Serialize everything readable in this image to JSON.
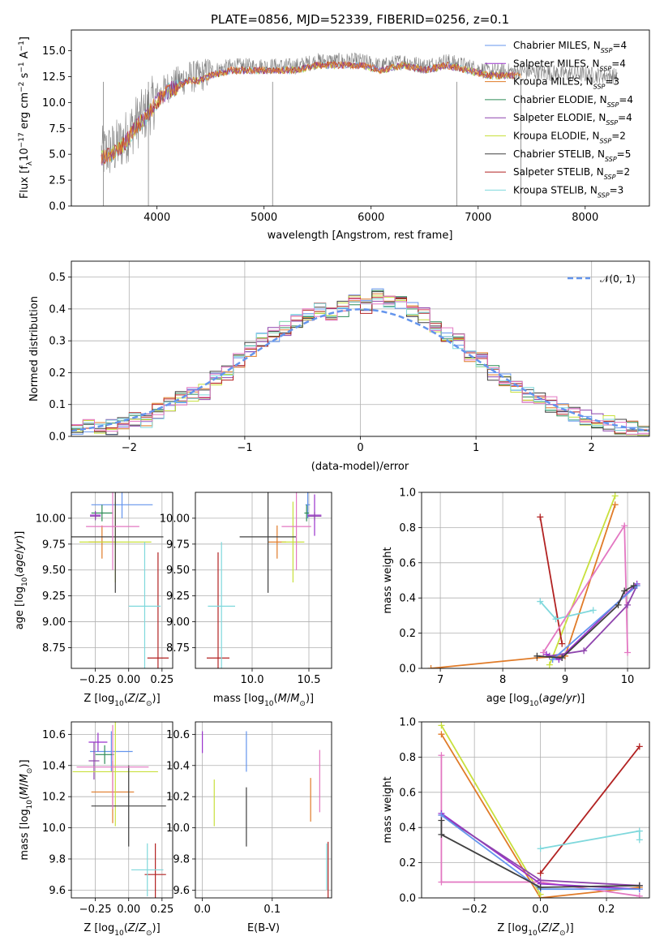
{
  "colors": {
    "chabrier_miles": "#6495ed",
    "salpeter_miles": "#9932cc",
    "kroupa_miles": "#e07b28",
    "chabrier_elodie": "#2e8b57",
    "salpeter_elodie": "#8e44ad",
    "kroupa_elodie": "#c8e03c",
    "chabrier_stelib": "#404040",
    "salpeter_stelib": "#b22222",
    "kroupa_stelib": "#7fd8dc",
    "elodie_pink": "#e377c2",
    "gaussian": "#6495ed"
  },
  "chart_data": [
    {
      "type": "line",
      "title": "PLATE=0856, MJD=52339, FIBERID=0256, z=0.1",
      "xlabel": "wavelength [Angstrom, rest frame]",
      "ylabel": "Flux [fλ10⁻¹⁷ erg cm⁻² s⁻¹ A⁻¹]",
      "xlim": [
        3200,
        8600
      ],
      "ylim": [
        0,
        17
      ],
      "xticks": [
        4000,
        5000,
        6000,
        7000,
        8000
      ],
      "yticks": [
        0.0,
        2.5,
        5.0,
        7.5,
        10.0,
        12.5,
        15.0
      ],
      "legend_position": "right",
      "legend": [
        "Chabrier MILES, N_SSP=4",
        "Salpeter MILES, N_SSP=4",
        "Kroupa MILES, N_SSP=3",
        "Chabrier ELODIE, N_SSP=4",
        "Salpeter ELODIE, N_SSP=4",
        "Kroupa ELODIE, N_SSP=2",
        "Chabrier STELIB, N_SSP=5",
        "Salpeter STELIB, N_SSP=2",
        "Kroupa STELIB, N_SSP=3"
      ],
      "spectrum_envelope": {
        "x": [
          3480,
          3600,
          3700,
          3800,
          3900,
          4000,
          4100,
          4200,
          4300,
          4400,
          4500,
          4700,
          4900,
          5100,
          5300,
          5500,
          5700,
          5900,
          6100,
          6300,
          6500,
          6700,
          6900,
          7100,
          7300,
          7400
        ],
        "y": [
          5.0,
          5.5,
          6.5,
          8.0,
          9.0,
          10.5,
          11.5,
          12.0,
          12.5,
          12.5,
          13.0,
          13.5,
          13.5,
          13.5,
          13.5,
          14.0,
          14.0,
          14.0,
          13.5,
          14.0,
          13.5,
          14.0,
          13.5,
          13.0,
          13.0,
          13.0
        ]
      }
    },
    {
      "type": "bar",
      "xlabel": "(data-model)/error",
      "ylabel": "Normed distribution",
      "xlim": [
        -2.5,
        2.5
      ],
      "ylim": [
        0,
        0.55
      ],
      "xticks": [
        -2,
        -1,
        0,
        1,
        2
      ],
      "yticks": [
        0.0,
        0.1,
        0.2,
        0.3,
        0.4,
        0.5
      ],
      "legend": [
        "𝒩(0, 1)"
      ],
      "legend_position": "top-right",
      "bin_width": 0.1,
      "bins_left": -2.5,
      "histogram": [
        0.02,
        0.03,
        0.03,
        0.03,
        0.04,
        0.05,
        0.05,
        0.08,
        0.1,
        0.12,
        0.13,
        0.14,
        0.18,
        0.2,
        0.24,
        0.27,
        0.3,
        0.32,
        0.34,
        0.36,
        0.38,
        0.4,
        0.38,
        0.4,
        0.42,
        0.41,
        0.44,
        0.43,
        0.42,
        0.4,
        0.38,
        0.35,
        0.32,
        0.3,
        0.26,
        0.24,
        0.2,
        0.18,
        0.15,
        0.13,
        0.12,
        0.1,
        0.08,
        0.07,
        0.06,
        0.05,
        0.04,
        0.03,
        0.03,
        0.02
      ]
    },
    {
      "type": "scatter",
      "xlabel": "Z [log10(Z/Z⊙)]",
      "ylabel": "age [log10(age/yr)]",
      "xlim": [
        -0.43,
        0.33
      ],
      "ylim": [
        8.55,
        10.25
      ],
      "xticks": [
        -0.25,
        0.0,
        0.25
      ],
      "yticks": [
        8.75,
        9.0,
        9.25,
        9.5,
        9.75,
        10.0
      ],
      "points": [
        {
          "series": "chabrier_miles",
          "x": -0.05,
          "y": 10.13,
          "xerr": 0.23,
          "yerr": 0.13
        },
        {
          "series": "salpeter_miles",
          "x": -0.25,
          "y": 10.03,
          "xerr": 0.04,
          "yerr": 0.04
        },
        {
          "series": "kroupa_miles",
          "x": -0.2,
          "y": 9.77,
          "xerr": 0.1,
          "yerr": 0.16
        },
        {
          "series": "chabrier_elodie",
          "x": -0.2,
          "y": 10.05,
          "xerr": 0.08,
          "yerr": 0.08
        },
        {
          "series": "salpeter_elodie",
          "x": -0.25,
          "y": 10.02,
          "xerr": 0.04,
          "yerr": 0.04
        },
        {
          "series": "kroupa_elodie",
          "x": -0.1,
          "y": 9.77,
          "xerr": 0.27,
          "yerr": 0.39
        },
        {
          "series": "chabrier_stelib",
          "x": -0.1,
          "y": 9.82,
          "xerr": 0.36,
          "yerr": 0.54
        },
        {
          "series": "salpeter_stelib",
          "x": 0.22,
          "y": 8.65,
          "xerr": 0.08,
          "yerr": 1.02
        },
        {
          "series": "kroupa_stelib",
          "x": 0.12,
          "y": 9.15,
          "xerr": 0.12,
          "yerr": 0.62
        },
        {
          "series": "elodie_pink",
          "x": -0.12,
          "y": 9.92,
          "xerr": 0.2,
          "yerr": 0.42
        }
      ]
    },
    {
      "type": "scatter",
      "xlabel": "mass [log10(M/M⊙)]",
      "ylabel": "",
      "xlim": [
        9.5,
        10.7
      ],
      "ylim": [
        8.55,
        10.25
      ],
      "xticks": [
        10.0,
        10.5
      ],
      "yticks": [
        8.75,
        9.0,
        9.25,
        9.5,
        9.75,
        10.0
      ],
      "points": [
        {
          "series": "chabrier_miles",
          "x": 10.49,
          "y": 10.13,
          "xerr": 0.02,
          "yerr": 0.13
        },
        {
          "series": "salpeter_miles",
          "x": 10.55,
          "y": 10.03,
          "xerr": 0.06,
          "yerr": 0.2
        },
        {
          "series": "kroupa_miles",
          "x": 10.22,
          "y": 9.77,
          "xerr": 0.08,
          "yerr": 0.16
        },
        {
          "series": "chabrier_elodie",
          "x": 10.48,
          "y": 10.05,
          "xerr": 0.02,
          "yerr": 0.08
        },
        {
          "series": "salpeter_elodie",
          "x": 10.55,
          "y": 10.02,
          "xerr": 0.06,
          "yerr": 0.04
        },
        {
          "series": "kroupa_elodie",
          "x": 10.36,
          "y": 9.77,
          "xerr": 0.1,
          "yerr": 0.39
        },
        {
          "series": "chabrier_stelib",
          "x": 10.14,
          "y": 9.82,
          "xerr": 0.25,
          "yerr": 0.54
        },
        {
          "series": "salpeter_stelib",
          "x": 9.7,
          "y": 8.65,
          "xerr": 0.1,
          "yerr": 1.02
        },
        {
          "series": "kroupa_stelib",
          "x": 9.73,
          "y": 9.15,
          "xerr": 0.12,
          "yerr": 0.62
        },
        {
          "series": "elodie_pink",
          "x": 10.39,
          "y": 9.92,
          "xerr": 0.13,
          "yerr": 0.42
        }
      ]
    },
    {
      "type": "line",
      "xlabel": "age [log10(age/yr)]",
      "ylabel": "mass weight",
      "xlim": [
        6.7,
        10.35
      ],
      "ylim": [
        0,
        1
      ],
      "xticks": [
        7,
        8,
        9,
        10
      ],
      "yticks": [
        0.0,
        0.2,
        0.4,
        0.6,
        0.8,
        1.0
      ],
      "series": [
        {
          "series": "kroupa_miles",
          "x": [
            6.85,
            8.55,
            9.0,
            9.8
          ],
          "y": [
            0.0,
            0.06,
            0.07,
            0.93
          ]
        },
        {
          "series": "kroupa_elodie",
          "x": [
            8.75,
            9.8
          ],
          "y": [
            0.02,
            0.98
          ]
        },
        {
          "series": "salpeter_stelib",
          "x": [
            8.6,
            8.95
          ],
          "y": [
            0.86,
            0.14
          ]
        },
        {
          "series": "kroupa_stelib",
          "x": [
            8.6,
            8.85,
            9.45
          ],
          "y": [
            0.38,
            0.28,
            0.33
          ]
        },
        {
          "series": "elodie_pink",
          "x": [
            8.65,
            9.95,
            10.0
          ],
          "y": [
            0.09,
            0.81,
            0.09
          ]
        },
        {
          "series": "salpeter_miles",
          "x": [
            8.7,
            8.9,
            10.15
          ],
          "y": [
            0.08,
            0.05,
            0.48
          ]
        },
        {
          "series": "salpeter_elodie",
          "x": [
            8.75,
            9.3,
            10.0,
            10.15
          ],
          "y": [
            0.07,
            0.1,
            0.36,
            0.47
          ]
        },
        {
          "series": "chabrier_miles",
          "x": [
            8.8,
            10.15
          ],
          "y": [
            0.05,
            0.47
          ]
        },
        {
          "series": "chabrier_stelib",
          "x": [
            8.55,
            8.95,
            9.85,
            9.95,
            10.1
          ],
          "y": [
            0.07,
            0.06,
            0.36,
            0.44,
            0.47
          ]
        }
      ]
    },
    {
      "type": "scatter",
      "xlabel": "Z [log10(Z/Z⊙)]",
      "ylabel": "mass [log10(M/M⊙)]",
      "xlim": [
        -0.43,
        0.33
      ],
      "ylim": [
        9.55,
        10.68
      ],
      "xticks": [
        -0.25,
        0.0,
        0.25
      ],
      "yticks": [
        9.6,
        9.8,
        10.0,
        10.2,
        10.4,
        10.6
      ],
      "points": [
        {
          "series": "chabrier_miles",
          "x": -0.13,
          "y": 10.49,
          "xerr": 0.16,
          "yerr": 0.13
        },
        {
          "series": "salpeter_miles",
          "x": -0.23,
          "y": 10.55,
          "xerr": 0.07,
          "yerr": 0.06
        },
        {
          "series": "kroupa_miles",
          "x": -0.12,
          "y": 10.23,
          "xerr": 0.16,
          "yerr": 0.2
        },
        {
          "series": "chabrier_elodie",
          "x": -0.18,
          "y": 10.47,
          "xerr": 0.07,
          "yerr": 0.06
        },
        {
          "series": "salpeter_elodie",
          "x": -0.26,
          "y": 10.43,
          "xerr": 0.04,
          "yerr": 0.12
        },
        {
          "series": "kroupa_elodie",
          "x": -0.1,
          "y": 10.36,
          "xerr": 0.32,
          "yerr": 0.35
        },
        {
          "series": "chabrier_stelib",
          "x": 0.0,
          "y": 10.14,
          "xerr": 0.28,
          "yerr": 0.26
        },
        {
          "series": "salpeter_stelib",
          "x": 0.2,
          "y": 9.7,
          "xerr": 0.08,
          "yerr": 0.2
        },
        {
          "series": "kroupa_stelib",
          "x": 0.14,
          "y": 9.73,
          "xerr": 0.12,
          "yerr": 0.17
        },
        {
          "series": "elodie_pink",
          "x": -0.12,
          "y": 10.39,
          "xerr": 0.27,
          "yerr": 0.27
        }
      ]
    },
    {
      "type": "scatter",
      "xlabel": "E(B-V)",
      "ylabel": "",
      "xlim": [
        -0.01,
        0.185
      ],
      "ylim": [
        9.55,
        10.68
      ],
      "xticks": [
        0.0,
        0.1
      ],
      "yticks": [
        9.6,
        9.8,
        10.0,
        10.2,
        10.4,
        10.6
      ],
      "points": [
        {
          "series": "chabrier_miles",
          "x": 0.063,
          "y": 10.49,
          "xerr": 0,
          "yerr": 0.13
        },
        {
          "series": "salpeter_miles",
          "x": 0.0,
          "y": 10.55,
          "xerr": 0,
          "yerr": 0.07
        },
        {
          "series": "kroupa_miles",
          "x": 0.155,
          "y": 10.18,
          "xerr": 0,
          "yerr": 0.14
        },
        {
          "series": "kroupa_elodie",
          "x": 0.017,
          "y": 10.16,
          "xerr": 0,
          "yerr": 0.15
        },
        {
          "series": "chabrier_stelib",
          "x": 0.063,
          "y": 10.07,
          "xerr": 0,
          "yerr": 0.19
        },
        {
          "series": "salpeter_stelib",
          "x": 0.18,
          "y": 9.72,
          "xerr": 0,
          "yerr": 0.19
        },
        {
          "series": "kroupa_stelib",
          "x": 0.178,
          "y": 9.75,
          "xerr": 0,
          "yerr": 0.15
        },
        {
          "series": "elodie_pink",
          "x": 0.168,
          "y": 10.3,
          "xerr": 0,
          "yerr": 0.2
        }
      ]
    },
    {
      "type": "line",
      "xlabel": "Z [log10(Z/Z⊙)]",
      "ylabel": "mass weight",
      "xlim": [
        -0.36,
        0.33
      ],
      "ylim": [
        0,
        1
      ],
      "xticks": [
        -0.2,
        0.0,
        0.2
      ],
      "yticks": [
        0.0,
        0.2,
        0.4,
        0.6,
        0.8,
        1.0
      ],
      "series": [
        {
          "series": "kroupa_miles",
          "x": [
            -0.3,
            0.0,
            0.3
          ],
          "y": [
            0.93,
            0.0,
            0.06
          ]
        },
        {
          "series": "kroupa_elodie",
          "x": [
            -0.3,
            0.0
          ],
          "y": [
            0.98,
            0.02
          ]
        },
        {
          "series": "salpeter_stelib",
          "x": [
            0.0,
            0.3
          ],
          "y": [
            0.14,
            0.86
          ]
        },
        {
          "series": "kroupa_stelib",
          "x": [
            0.0,
            0.3,
            0.3
          ],
          "y": [
            0.28,
            0.38,
            0.33
          ]
        },
        {
          "series": "elodie_pink",
          "x": [
            -0.3,
            -0.3,
            0.0,
            0.3
          ],
          "y": [
            0.81,
            0.09,
            0.09,
            0.01
          ]
        },
        {
          "series": "salpeter_miles",
          "x": [
            -0.3,
            0.0,
            0.3
          ],
          "y": [
            0.48,
            0.08,
            0.05
          ]
        },
        {
          "series": "salpeter_elodie",
          "x": [
            -0.3,
            0.0,
            0.3
          ],
          "y": [
            0.47,
            0.1,
            0.07
          ]
        },
        {
          "series": "chabrier_miles",
          "x": [
            -0.3,
            0.0,
            0.3
          ],
          "y": [
            0.47,
            0.05,
            0.05
          ]
        },
        {
          "series": "chabrier_stelib",
          "x": [
            -0.3,
            -0.3,
            0.0,
            0.3
          ],
          "y": [
            0.44,
            0.36,
            0.06,
            0.07
          ]
        }
      ]
    }
  ]
}
